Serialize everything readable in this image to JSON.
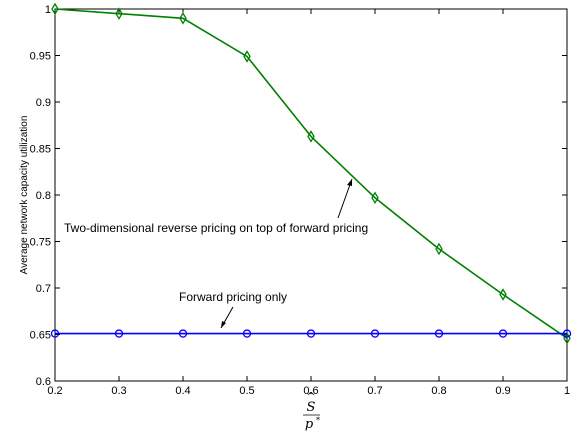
{
  "chart_data": {
    "type": "line",
    "x": [
      0.2,
      0.3,
      0.4,
      0.5,
      0.6,
      0.7,
      0.8,
      0.9,
      1.0
    ],
    "series": [
      {
        "name": "Two-dimensional reverse pricing on top of forward pricing",
        "marker": "diamond",
        "color": "#008000",
        "values": [
          1.0,
          0.995,
          0.99,
          0.949,
          0.863,
          0.797,
          0.742,
          0.693,
          0.646
        ]
      },
      {
        "name": "Forward pricing only",
        "marker": "circle",
        "color": "#0000ff",
        "values": [
          0.651,
          0.651,
          0.651,
          0.651,
          0.651,
          0.651,
          0.651,
          0.651,
          0.651
        ]
      }
    ],
    "xlim": [
      0.2,
      1.0
    ],
    "ylim": [
      0.6,
      1.0
    ],
    "xticks": [
      "0.2",
      "0.3",
      "0.4",
      "0.5",
      "0.6",
      "0.7",
      "0.8",
      "0.9",
      "1"
    ],
    "yticks": [
      "0.6",
      "0.65",
      "0.7",
      "0.75",
      "0.8",
      "0.85",
      "0.9",
      "0.95",
      "1"
    ],
    "ylabel": "Average network capacity utilization",
    "xlabel": {
      "numerator": "S",
      "denominator": "p",
      "denominator_sup": "*"
    },
    "grid": false,
    "annotations": [
      {
        "text": "Two-dimensional reverse pricing on top of forward pricing",
        "points_to": [
          0.66,
          0.82
        ]
      },
      {
        "text": "Forward pricing only",
        "points_to": [
          0.45,
          0.651
        ]
      }
    ]
  }
}
